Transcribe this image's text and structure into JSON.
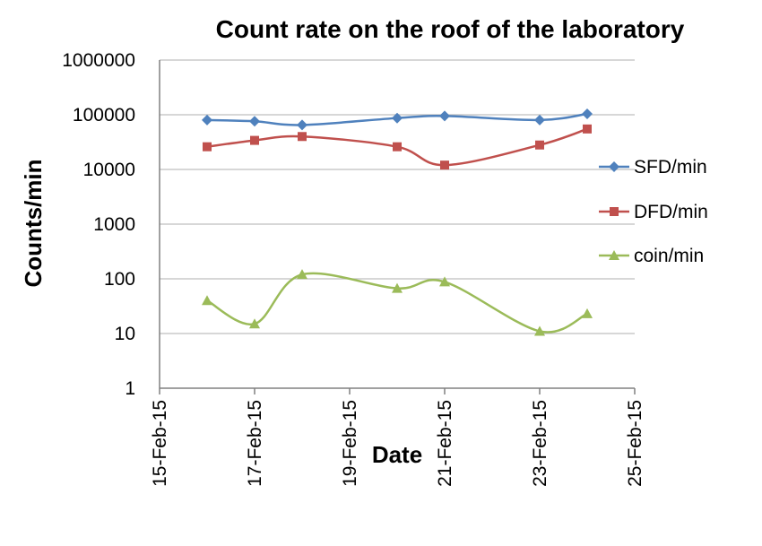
{
  "chart_data": {
    "type": "line",
    "title": "Count rate on the roof of the laboratory",
    "xlabel": "Date",
    "ylabel": "Counts/min",
    "yscale": "log",
    "ylim": [
      1,
      1000000
    ],
    "xlim": [
      "15-Feb-15",
      "25-Feb-15"
    ],
    "y_ticks": [
      1,
      10,
      100,
      1000,
      10000,
      100000,
      1000000
    ],
    "y_tick_labels": [
      "1",
      "10",
      "100",
      "1000",
      "10000",
      "100000",
      "1000000"
    ],
    "x_ticks": [
      "15-Feb-15",
      "17-Feb-15",
      "19-Feb-15",
      "21-Feb-15",
      "23-Feb-15",
      "25-Feb-15"
    ],
    "grid": "horizontal",
    "legend_position": "right",
    "line_style": "smooth",
    "x": [
      "16-Feb-15",
      "17-Feb-15",
      "18-Feb-15",
      "20-Feb-15",
      "21-Feb-15",
      "23-Feb-15",
      "24-Feb-15"
    ],
    "series": [
      {
        "name": "SFD/min",
        "color": "#4F81BD",
        "marker": "diamond",
        "values": [
          80000,
          76000,
          65000,
          87000,
          95000,
          80000,
          104000
        ]
      },
      {
        "name": "DFD/min",
        "color": "#C0504D",
        "marker": "square",
        "values": [
          26000,
          34000,
          40000,
          26000,
          12000,
          28000,
          55000
        ]
      },
      {
        "name": "coin/min",
        "color": "#9BBB59",
        "marker": "triangle",
        "values": [
          40,
          15,
          120,
          67,
          88,
          11,
          23
        ]
      }
    ]
  }
}
